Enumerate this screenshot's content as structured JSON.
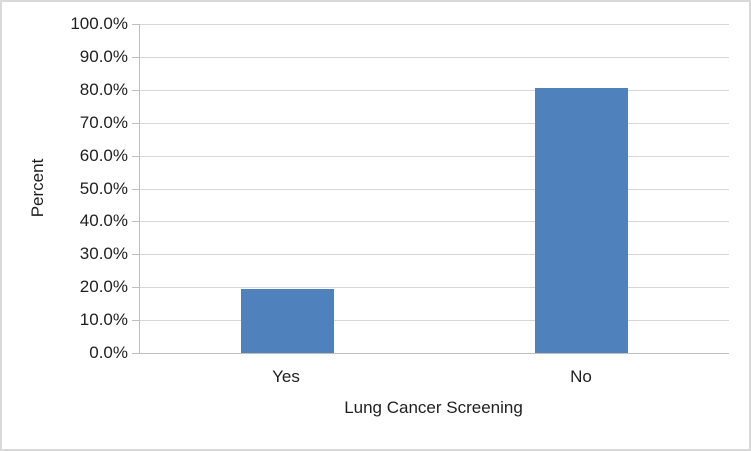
{
  "chart_data": {
    "type": "bar",
    "categories": [
      "Yes",
      "No"
    ],
    "values": [
      19.5,
      80.5
    ],
    "title": "",
    "xlabel": "Lung Cancer Screening",
    "ylabel": "Percent",
    "ylim": [
      0,
      100
    ],
    "y_ticks": [
      {
        "value": 0,
        "label": "0.0%"
      },
      {
        "value": 10,
        "label": "10.0%"
      },
      {
        "value": 20,
        "label": "20.0%"
      },
      {
        "value": 30,
        "label": "30.0%"
      },
      {
        "value": 40,
        "label": "40.0%"
      },
      {
        "value": 50,
        "label": "50.0%"
      },
      {
        "value": 60,
        "label": "60.0%"
      },
      {
        "value": 70,
        "label": "70.0%"
      },
      {
        "value": 80,
        "label": "80.0%"
      },
      {
        "value": 90,
        "label": "90.0%"
      },
      {
        "value": 100,
        "label": "100.0%"
      }
    ],
    "grid": "horizontal",
    "legend": "none"
  },
  "colors": {
    "bar_fill": "#4f81bd",
    "gridline": "#d6d6d6",
    "axis_line": "#bfbfbf",
    "text": "#1f1f1f",
    "frame_border": "#d9d9d9",
    "background": "#ffffff"
  }
}
